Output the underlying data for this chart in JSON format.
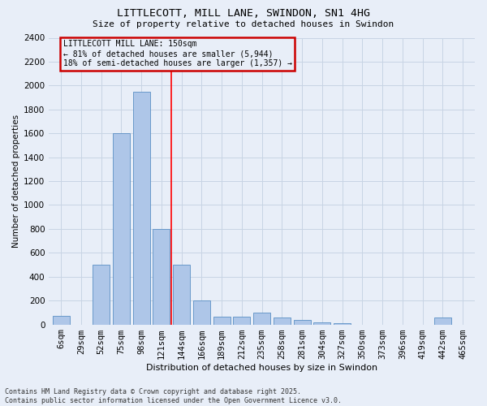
{
  "title1": "LITTLECOTT, MILL LANE, SWINDON, SN1 4HG",
  "title2": "Size of property relative to detached houses in Swindon",
  "xlabel": "Distribution of detached houses by size in Swindon",
  "ylabel": "Number of detached properties",
  "categories": [
    "6sqm",
    "29sqm",
    "52sqm",
    "75sqm",
    "98sqm",
    "121sqm",
    "144sqm",
    "166sqm",
    "189sqm",
    "212sqm",
    "235sqm",
    "258sqm",
    "281sqm",
    "304sqm",
    "327sqm",
    "350sqm",
    "373sqm",
    "396sqm",
    "419sqm",
    "442sqm",
    "465sqm"
  ],
  "values": [
    70,
    0,
    500,
    1600,
    1950,
    800,
    500,
    200,
    65,
    65,
    100,
    55,
    40,
    20,
    10,
    0,
    0,
    0,
    0,
    55,
    0
  ],
  "bar_color": "#aec6e8",
  "bar_edge_color": "#5a8fc4",
  "grid_color": "#c8d4e4",
  "bg_color": "#e8eef8",
  "property_line_bar_idx": 6,
  "annotation_text": "LITTLECOTT MILL LANE: 150sqm\n← 81% of detached houses are smaller (5,944)\n18% of semi-detached houses are larger (1,357) →",
  "annotation_box_edgecolor": "#cc0000",
  "ylim": [
    0,
    2400
  ],
  "yticks": [
    0,
    200,
    400,
    600,
    800,
    1000,
    1200,
    1400,
    1600,
    1800,
    2000,
    2200,
    2400
  ],
  "footnote_line1": "Contains HM Land Registry data © Crown copyright and database right 2025.",
  "footnote_line2": "Contains public sector information licensed under the Open Government Licence v3.0."
}
